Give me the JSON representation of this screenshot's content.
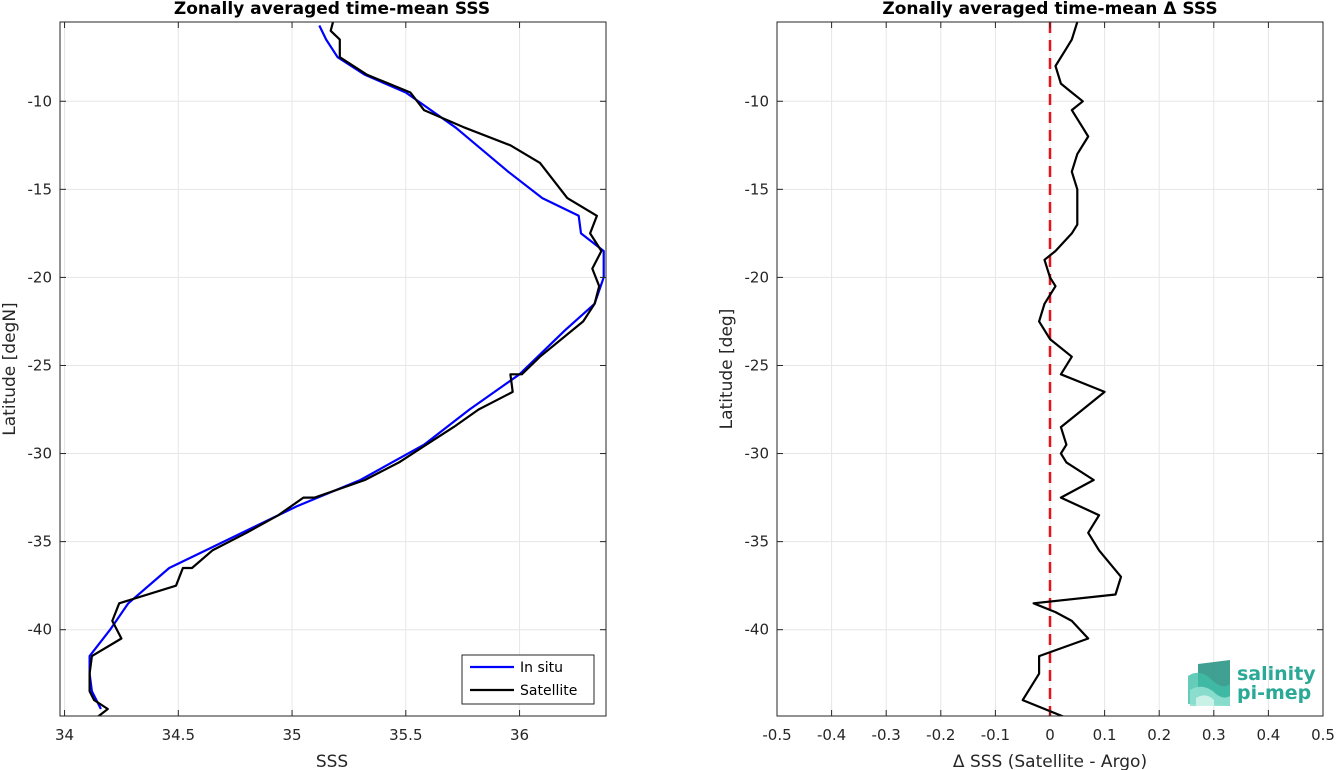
{
  "colors": {
    "insitu": "#0000ff",
    "satellite": "#000000",
    "zero_line": "#e3141b",
    "grid": "#e6e6e6",
    "logo": "#2aa997"
  },
  "logo": {
    "line1": "salinity",
    "line2": "pi-mep",
    "icon": "salinity-wave-logo-icon"
  },
  "chart_data": [
    {
      "type": "line",
      "title": "Zonally averaged time-mean SSS",
      "xlabel": "SSS",
      "ylabel": "Latitude [degN]",
      "xlim": [
        33.98,
        36.38
      ],
      "ylim": [
        -44.9,
        -5.5
      ],
      "xticks": [
        34,
        34.5,
        35,
        35.5,
        36
      ],
      "xtick_labels": [
        "34",
        "34.5",
        "35",
        "35.5",
        "36"
      ],
      "yticks": [
        -40,
        -35,
        -30,
        -25,
        -20,
        -15,
        -10
      ],
      "ytick_labels": [
        "-40",
        "-35",
        "-30",
        "-25",
        "-20",
        "-15",
        "-10"
      ],
      "grid": true,
      "legend": {
        "placement": "bottom-right",
        "entries": [
          "In situ",
          "Satellite"
        ]
      },
      "series": [
        {
          "name": "In situ",
          "color": "#0000ff",
          "x": [
            35.12,
            35.15,
            35.2,
            35.32,
            35.5,
            35.72,
            35.95,
            36.1,
            36.26,
            36.27,
            36.37,
            36.37,
            36.33,
            36.2,
            36.0,
            35.78,
            35.58,
            35.3,
            35.02,
            34.7,
            34.46,
            34.28,
            34.2,
            34.11,
            34.11,
            34.12,
            34.16
          ],
          "y": [
            -5.7,
            -6.5,
            -7.5,
            -8.5,
            -9.5,
            -11.5,
            -14.0,
            -15.5,
            -16.5,
            -17.5,
            -18.5,
            -20.0,
            -21.5,
            -23.0,
            -25.5,
            -27.5,
            -29.5,
            -31.5,
            -33.0,
            -35.0,
            -36.5,
            -38.5,
            -40.0,
            -41.5,
            -42.5,
            -43.5,
            -44.5
          ]
        },
        {
          "name": "Satellite",
          "color": "#000000",
          "x": [
            35.18,
            35.17,
            35.21,
            35.21,
            35.33,
            35.52,
            35.58,
            35.76,
            35.96,
            36.09,
            36.21,
            36.34,
            36.31,
            36.36,
            36.32,
            36.35,
            36.33,
            36.28,
            36.09,
            36.01,
            35.96,
            35.97,
            35.82,
            35.71,
            35.59,
            35.47,
            35.32,
            35.1,
            35.05,
            34.94,
            34.8,
            34.65,
            34.56,
            34.52,
            34.49,
            34.24,
            34.21,
            34.25,
            34.12,
            34.11,
            34.11,
            34.13,
            34.19,
            34.14
          ],
          "y": [
            -5.5,
            -6.0,
            -6.5,
            -7.5,
            -8.5,
            -9.5,
            -10.5,
            -11.5,
            -12.5,
            -13.5,
            -15.5,
            -16.5,
            -17.5,
            -18.5,
            -19.5,
            -20.5,
            -21.5,
            -22.5,
            -24.5,
            -25.5,
            -25.5,
            -26.5,
            -27.5,
            -28.5,
            -29.5,
            -30.5,
            -31.5,
            -32.5,
            -32.5,
            -33.5,
            -34.5,
            -35.5,
            -36.5,
            -36.5,
            -37.5,
            -38.5,
            -39.5,
            -40.5,
            -41.5,
            -42.5,
            -43.5,
            -44.0,
            -44.5,
            -45.0
          ]
        }
      ]
    },
    {
      "type": "line",
      "title": "Zonally averaged time-mean Δ SSS",
      "xlabel": "Δ SSS (Satellite - Argo)",
      "ylabel": "Latitude [deg]",
      "xlim": [
        -0.5,
        0.5
      ],
      "ylim": [
        -44.9,
        -5.5
      ],
      "xticks": [
        -0.5,
        -0.4,
        -0.3,
        -0.2,
        -0.1,
        0,
        0.1,
        0.2,
        0.3,
        0.4,
        0.5
      ],
      "xtick_labels": [
        "-0.5",
        "-0.4",
        "-0.3",
        "-0.2",
        "-0.1",
        "0",
        "0.1",
        "0.2",
        "0.3",
        "0.4",
        "0.5"
      ],
      "yticks": [
        -40,
        -35,
        -30,
        -25,
        -20,
        -15,
        -10
      ],
      "ytick_labels": [
        "-40",
        "-35",
        "-30",
        "-25",
        "-20",
        "-15",
        "-10"
      ],
      "grid": true,
      "reference_line": {
        "x": 0,
        "style": "dashed",
        "color": "#e3141b"
      },
      "series": [
        {
          "color": "#000000",
          "x": [
            0.05,
            0.04,
            0.03,
            0.01,
            0.02,
            0.04,
            0.06,
            0.04,
            0.06,
            0.07,
            0.05,
            0.04,
            0.05,
            0.05,
            0.05,
            0.04,
            0.01,
            -0.01,
            0.0,
            0.01,
            -0.01,
            -0.02,
            -0.01,
            0.0,
            0.04,
            0.02,
            0.1,
            0.06,
            0.02,
            0.03,
            0.02,
            0.03,
            0.08,
            0.02,
            0.09,
            0.07,
            0.09,
            0.13,
            0.12,
            -0.03,
            0.01,
            0.04,
            0.07,
            -0.02,
            -0.02,
            -0.05,
            0.03
          ],
          "y": [
            -5.5,
            -6.5,
            -7.0,
            -8.0,
            -9.0,
            -9.5,
            -10.0,
            -10.5,
            -11.5,
            -12.0,
            -13.0,
            -14.0,
            -15.0,
            -16.0,
            -17.0,
            -17.5,
            -18.5,
            -19.0,
            -20.0,
            -20.5,
            -21.5,
            -22.5,
            -23.0,
            -23.5,
            -24.5,
            -25.5,
            -26.5,
            -27.5,
            -28.5,
            -29.5,
            -30.0,
            -30.5,
            -31.5,
            -32.5,
            -33.5,
            -34.5,
            -35.5,
            -37.0,
            -38.0,
            -38.5,
            -39.0,
            -39.5,
            -40.5,
            -41.5,
            -42.5,
            -44.0,
            -45.0
          ]
        }
      ]
    }
  ]
}
